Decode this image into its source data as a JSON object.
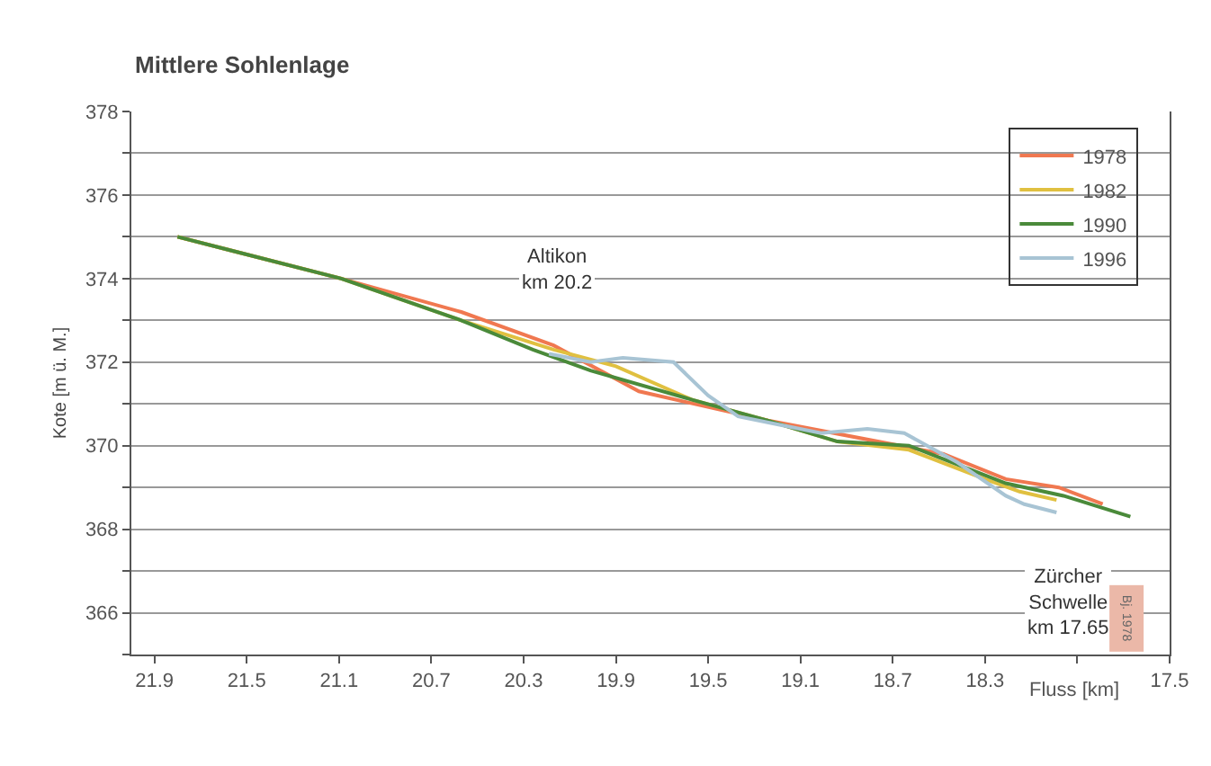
{
  "chart_data": {
    "type": "line",
    "title": "Mittlere Sohlenlage",
    "xlabel": "Fluss [km]",
    "ylabel": "Kote [m ü. M.]",
    "xlim": [
      22.0,
      17.5
    ],
    "xticks": [
      21.9,
      21.5,
      21.1,
      20.7,
      20.3,
      19.9,
      19.5,
      19.1,
      18.7,
      18.3,
      {
        "value": 17.9,
        "label": null
      },
      17.5
    ],
    "ylim": [
      365,
      378
    ],
    "yticks": [
      {
        "value": 365,
        "label": null
      },
      366,
      {
        "value": 367,
        "label": null
      },
      368,
      {
        "value": 369,
        "label": null
      },
      370,
      {
        "value": 371,
        "label": null
      },
      372,
      {
        "value": 373,
        "label": null
      },
      374,
      {
        "value": 375,
        "label": null
      },
      376,
      {
        "value": 377,
        "label": null
      },
      378
    ],
    "grid": "y",
    "legend": "top right",
    "line_style": "solid",
    "marker": "none",
    "series": [
      {
        "name": "1978",
        "color": "#f07850",
        "x": [
          21.8,
          21.09,
          20.57,
          20.17,
          19.8,
          19.24,
          18.48,
          18.21,
          17.98,
          17.79
        ],
        "values": [
          375.0,
          374.0,
          373.2,
          372.4,
          371.3,
          370.6,
          369.8,
          369.2,
          369.0,
          368.6
        ]
      },
      {
        "name": "1982",
        "color": "#e0c040",
        "x": [
          21.8,
          21.09,
          20.57,
          20.17,
          19.9,
          19.57,
          19.24,
          18.94,
          18.63,
          18.3,
          18.15,
          17.99
        ],
        "values": [
          375.0,
          374.0,
          373.0,
          372.3,
          371.9,
          371.1,
          370.6,
          370.1,
          369.9,
          369.2,
          368.9,
          368.7
        ]
      },
      {
        "name": "1990",
        "color": "#4a8a3a",
        "x": [
          21.8,
          21.09,
          20.57,
          20.26,
          20.01,
          19.57,
          19.24,
          18.94,
          18.63,
          18.21,
          17.96,
          17.67
        ],
        "values": [
          375.0,
          374.0,
          373.0,
          372.3,
          371.8,
          371.1,
          370.6,
          370.1,
          370.0,
          369.1,
          368.8,
          368.3
        ]
      },
      {
        "name": "1996",
        "color": "#a8c4d4",
        "x": [
          20.19,
          20.01,
          19.87,
          19.65,
          19.5,
          19.37,
          19.19,
          19.01,
          18.81,
          18.65,
          18.42,
          18.21,
          18.13,
          17.99
        ],
        "values": [
          372.2,
          372.0,
          372.1,
          372.0,
          371.2,
          370.7,
          370.5,
          370.3,
          370.4,
          370.3,
          369.6,
          368.8,
          368.6,
          368.4
        ]
      }
    ],
    "annotations": [
      "Altikon\nkm 20.2",
      "Zürcher\nSchwelle\nkm 17.65",
      "Bj. 1978"
    ]
  }
}
